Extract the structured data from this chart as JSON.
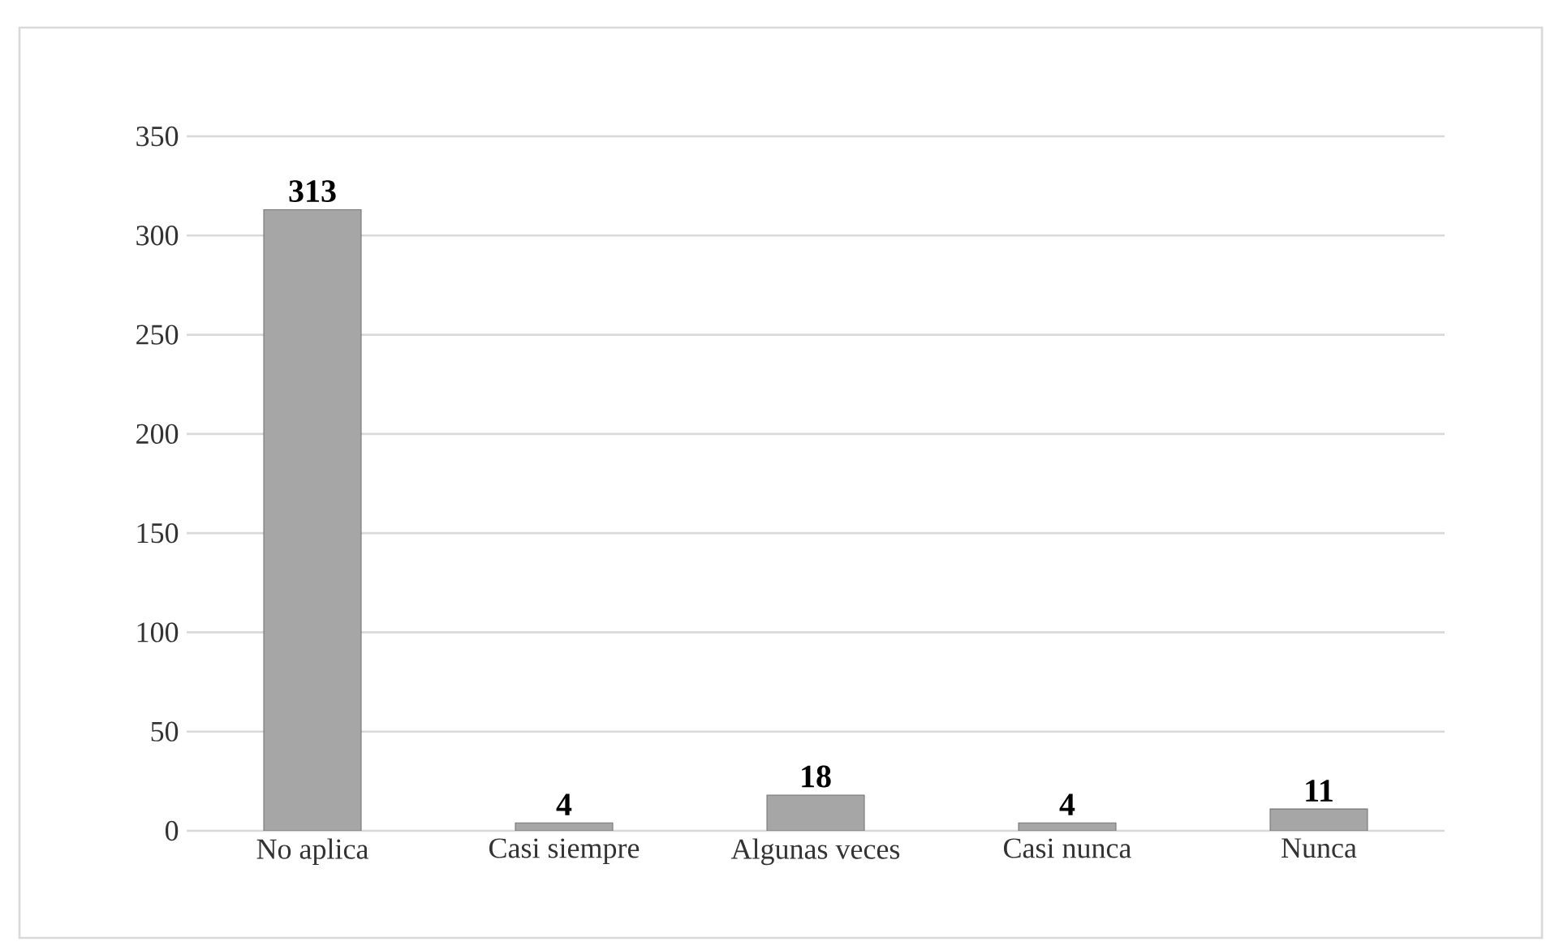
{
  "chart_data": {
    "type": "bar",
    "categories": [
      "No aplica",
      "Casi siempre",
      "Algunas veces",
      "Casi nunca",
      "Nunca"
    ],
    "values": [
      313,
      4,
      18,
      4,
      11
    ],
    "color": "#a6a6a6",
    "ylim": [
      0,
      350
    ],
    "yticks": [
      0,
      50,
      100,
      150,
      200,
      250,
      300,
      350
    ],
    "grid": "y",
    "data_labels": true
  }
}
